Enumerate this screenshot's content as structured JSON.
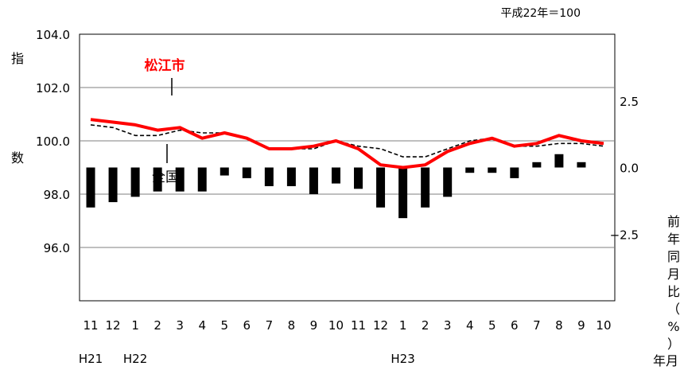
{
  "chart_data": {
    "type": "line",
    "note": "平成22年＝100",
    "ylabel_left": [
      "指",
      "数"
    ],
    "ylabel_right": [
      "前",
      "年",
      "同",
      "月",
      "比",
      "（",
      "%",
      "）"
    ],
    "xlabel": "年月",
    "left_ticks": [
      "104.0",
      "102.0",
      "100.0",
      "98.0",
      "96.0"
    ],
    "right_ticks": [
      "2.5",
      "0.0",
      "−2.5"
    ],
    "ylim_left": [
      94.0,
      104.0
    ],
    "ylim_right": [
      -5.0,
      5.0
    ],
    "categories": [
      "11",
      "12",
      "1",
      "2",
      "3",
      "4",
      "5",
      "6",
      "7",
      "8",
      "9",
      "10",
      "11",
      "12",
      "1",
      "2",
      "3",
      "4",
      "5",
      "6",
      "7",
      "8",
      "9",
      "10"
    ],
    "year_labels": [
      {
        "index": 0,
        "label": "H21"
      },
      {
        "index": 2,
        "label": "H22"
      },
      {
        "index": 14,
        "label": "H23"
      }
    ],
    "series": [
      {
        "name": "松江市",
        "color": "#ff0000",
        "values": [
          100.8,
          100.7,
          100.6,
          100.4,
          100.5,
          100.1,
          100.3,
          100.1,
          99.7,
          99.7,
          99.8,
          100.0,
          99.7,
          99.1,
          99.0,
          99.1,
          99.6,
          99.9,
          100.1,
          99.8,
          99.9,
          100.2,
          100.0,
          99.9
        ]
      },
      {
        "name": "全国",
        "color": "#000000",
        "values": [
          100.6,
          100.5,
          100.2,
          100.2,
          100.4,
          100.3,
          100.3,
          100.1,
          99.7,
          99.7,
          99.7,
          100.0,
          99.8,
          99.7,
          99.4,
          99.4,
          99.7,
          100.0,
          100.1,
          99.8,
          99.8,
          99.9,
          99.9,
          99.8
        ]
      }
    ],
    "bars": {
      "name": "前年同月比",
      "color": "#000000",
      "values": [
        -1.5,
        -1.3,
        -1.1,
        -0.9,
        -0.9,
        -0.9,
        -0.3,
        -0.4,
        -0.7,
        -0.7,
        -1.0,
        -0.6,
        -0.8,
        -1.5,
        -1.9,
        -1.5,
        -1.1,
        -0.2,
        -0.2,
        -0.4,
        0.2,
        0.5,
        0.2,
        0.0
      ]
    }
  }
}
